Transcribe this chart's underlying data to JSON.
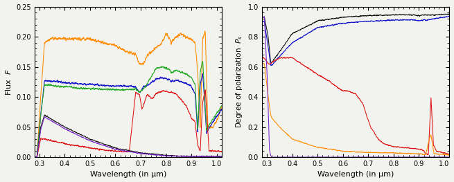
{
  "left_xlim": [
    0.28,
    1.02
  ],
  "left_ylim": [
    0.0,
    0.25
  ],
  "left_xticks": [
    0.3,
    0.4,
    0.5,
    0.6,
    0.7,
    0.8,
    0.9,
    1.0
  ],
  "left_yticks": [
    0.0,
    0.05,
    0.1,
    0.15,
    0.2,
    0.25
  ],
  "left_xlabel": "Wavelength (in μm)",
  "left_ylabel": "Flux  $F$",
  "right_xlim": [
    0.28,
    1.02
  ],
  "right_ylim": [
    0.0,
    1.0
  ],
  "right_xticks": [
    0.3,
    0.4,
    0.5,
    0.6,
    0.7,
    0.8,
    0.9,
    1.0
  ],
  "right_yticks": [
    0.0,
    0.2,
    0.4,
    0.6,
    0.8,
    1.0
  ],
  "right_xlabel": "Wavelength (in μm)",
  "right_ylabel": "Degree of polarization  $P_s$",
  "col_orange": "#FF8C00",
  "col_green": "#22AA22",
  "col_purple": "#7722CC",
  "col_red": "#DD1111",
  "col_black": "#111111",
  "col_blue": "#1111CC",
  "bg_color": "#F2F2EE"
}
